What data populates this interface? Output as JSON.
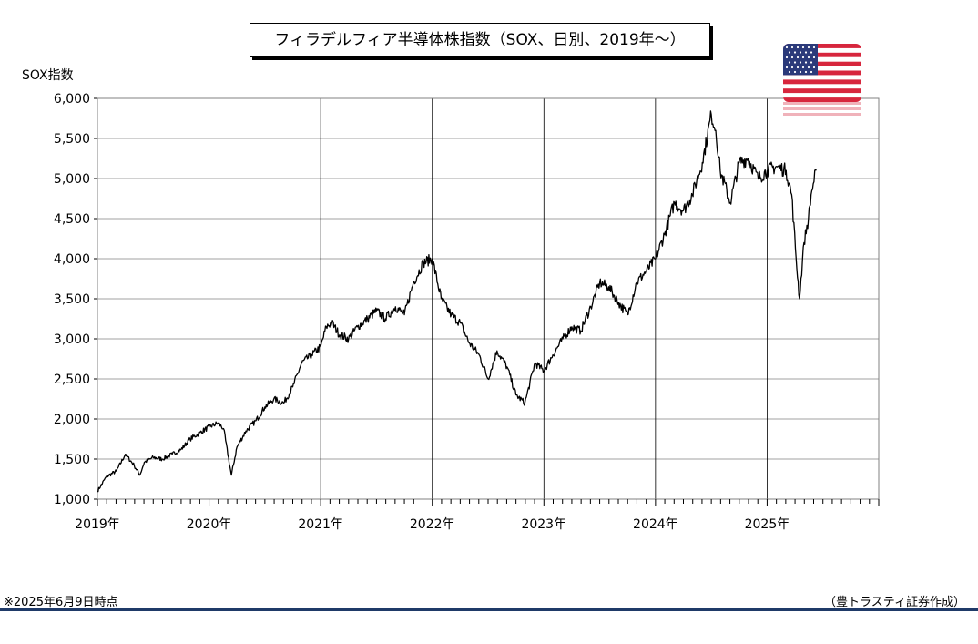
{
  "chart_data": {
    "type": "line",
    "title": "フィラデルフィア半導体株指数（SOX、日別、2019年～）",
    "ylabel": "SOX指数",
    "xlabel": "",
    "ylim": [
      1000,
      6000
    ],
    "xlim": [
      2019.0,
      2026.0
    ],
    "y_ticks": [
      "1,000",
      "1,500",
      "2,000",
      "2,500",
      "3,000",
      "3,500",
      "4,000",
      "4,500",
      "5,000",
      "5,500",
      "6,000"
    ],
    "x_ticks": [
      "2019年",
      "2020年",
      "2021年",
      "2022年",
      "2023年",
      "2024年",
      "2025年"
    ],
    "grid": true,
    "line_color": "#000000",
    "series": [
      {
        "x": [
          2019.0,
          2019.08,
          2019.17,
          2019.25,
          2019.33,
          2019.38,
          2019.42,
          2019.5,
          2019.58,
          2019.67,
          2019.75,
          2019.83,
          2019.92,
          2020.0,
          2020.08,
          2020.13,
          2020.2,
          2020.25,
          2020.33,
          2020.42,
          2020.5,
          2020.58,
          2020.67,
          2020.75,
          2020.83,
          2020.92,
          2021.0,
          2021.05,
          2021.1,
          2021.17,
          2021.25,
          2021.33,
          2021.42,
          2021.5,
          2021.58,
          2021.67,
          2021.75,
          2021.83,
          2021.92,
          2022.0,
          2022.08,
          2022.17,
          2022.25,
          2022.33,
          2022.42,
          2022.5,
          2022.58,
          2022.67,
          2022.75,
          2022.83,
          2022.92,
          2023.0,
          2023.08,
          2023.17,
          2023.25,
          2023.33,
          2023.42,
          2023.5,
          2023.58,
          2023.67,
          2023.75,
          2023.83,
          2023.92,
          2024.0,
          2024.08,
          2024.17,
          2024.25,
          2024.33,
          2024.42,
          2024.5,
          2024.54,
          2024.58,
          2024.67,
          2024.75,
          2024.83,
          2024.92,
          2025.0,
          2025.08,
          2025.17,
          2025.22,
          2025.26,
          2025.29,
          2025.33,
          2025.37,
          2025.4,
          2025.44
        ],
        "y": [
          1100,
          1280,
          1350,
          1560,
          1420,
          1300,
          1460,
          1520,
          1500,
          1560,
          1620,
          1750,
          1830,
          1900,
          1950,
          1880,
          1300,
          1650,
          1850,
          1980,
          2150,
          2250,
          2200,
          2400,
          2700,
          2800,
          2900,
          3150,
          3200,
          3050,
          3000,
          3150,
          3250,
          3350,
          3250,
          3400,
          3300,
          3700,
          3950,
          4000,
          3500,
          3300,
          3200,
          2950,
          2800,
          2500,
          2850,
          2650,
          2300,
          2200,
          2700,
          2600,
          2800,
          3000,
          3150,
          3100,
          3400,
          3700,
          3650,
          3450,
          3300,
          3700,
          3850,
          4000,
          4300,
          4700,
          4600,
          4800,
          5200,
          5800,
          5600,
          5100,
          4700,
          5200,
          5250,
          5000,
          5100,
          5150,
          5100,
          4800,
          4000,
          3500,
          4200,
          4500,
          4850,
          5100
        ]
      }
    ]
  },
  "footer": {
    "note": "※2025年6月9日時点",
    "source": "（豊トラスティ証券作成）"
  },
  "flag": {
    "icon": "us-flag-icon"
  }
}
